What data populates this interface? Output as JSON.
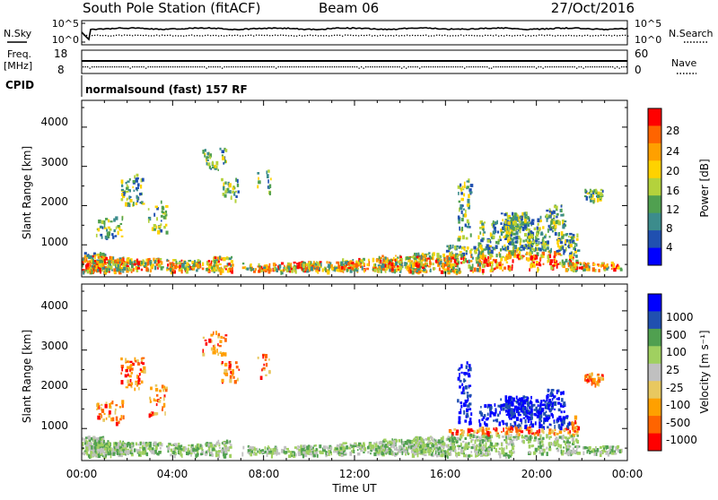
{
  "header": {
    "station": "South Pole Station (fitACF)",
    "beam": "Beam 06",
    "date": "27/Oct/2016"
  },
  "noise_panel": {
    "left_label": "N.Sky",
    "left_ticks": [
      "10^5",
      "10^0"
    ],
    "right_label": "N.Search",
    "right_ticks": [
      "10^5",
      "10^0"
    ]
  },
  "freq_panel": {
    "left_label_top": "Freq.",
    "left_label_bottom": "[MHz]",
    "left_ticks": [
      "18",
      "8"
    ],
    "right_label": "Nave",
    "right_ticks": [
      "60",
      "0"
    ]
  },
  "cpid": {
    "label": "CPID",
    "value": "normalsound (fast) 157 RF"
  },
  "x_axis": {
    "label": "Time UT",
    "ticks": [
      "00:00",
      "04:00",
      "08:00",
      "12:00",
      "16:00",
      "20:00",
      "00:00"
    ]
  },
  "colors": {
    "power_scale": [
      "#0000ff",
      "#2050b0",
      "#3c8c8c",
      "#50a050",
      "#b4d23c",
      "#ffd200",
      "#ffa000",
      "#ff6400",
      "#ff0000"
    ],
    "velocity_scale": [
      "#ff0000",
      "#ff6400",
      "#ffa000",
      "#e8c860",
      "#c0c0c0",
      "#a0d060",
      "#50a050",
      "#2050b0",
      "#0000ff"
    ]
  },
  "chart_data": [
    {
      "type": "heatmap",
      "name": "power-panel",
      "xlabel": "Time UT",
      "ylabel": "Slant Range [km]",
      "y_ticks": [
        "4000",
        "3000",
        "2000",
        "1000"
      ],
      "colorbar_label": "Power [dB]",
      "colorbar_ticks": [
        "28",
        "24",
        "20",
        "16",
        "12",
        "8",
        "4"
      ]
    },
    {
      "type": "heatmap",
      "name": "velocity-panel",
      "xlabel": "Time UT",
      "ylabel": "Slant Range [km]",
      "y_ticks": [
        "4000",
        "3000",
        "2000",
        "1000"
      ],
      "colorbar_label": "Velocity [m s⁻¹]",
      "colorbar_ticks": [
        "1000",
        "500",
        "100",
        "25",
        "-25",
        "-100",
        "-500",
        "-1000"
      ]
    }
  ]
}
